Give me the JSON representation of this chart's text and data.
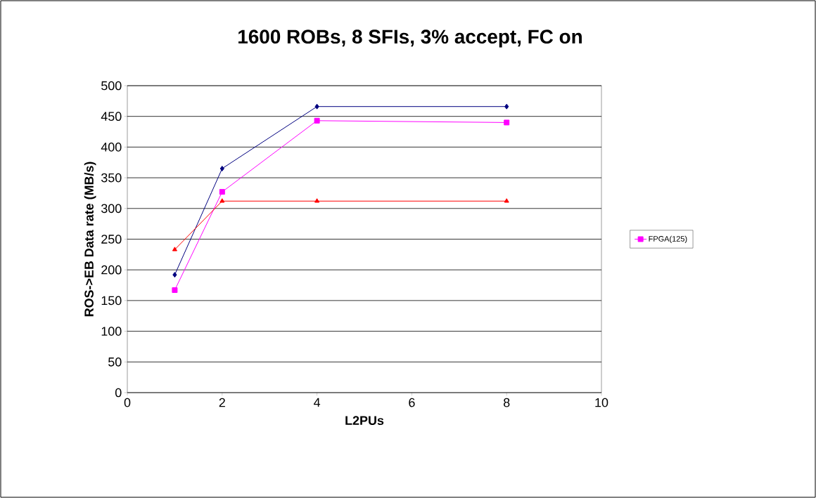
{
  "chart_data": {
    "type": "line",
    "title": "1600 ROBs, 8 SFIs, 3% accept, FC on",
    "xlabel": "L2PUs",
    "ylabel": "ROS->EB Data rate (MB/s)",
    "series": [
      {
        "color": "#000080",
        "marker": "diamond",
        "x": [
          1,
          2,
          4,
          8
        ],
        "values": [
          192,
          365,
          466,
          466
        ]
      },
      {
        "name": "FPGA(125)",
        "color": "#ff00ff",
        "marker": "square",
        "x": [
          1,
          2,
          4,
          8
        ],
        "values": [
          167,
          327,
          443,
          440
        ]
      },
      {
        "color": "#ff0000",
        "marker": "triangle",
        "x": [
          1,
          2,
          4,
          8
        ],
        "values": [
          233,
          312,
          312,
          312
        ]
      }
    ],
    "xlim": [
      0,
      10
    ],
    "xticks": [
      0,
      2,
      4,
      6,
      8,
      10
    ],
    "ylim": [
      0,
      500
    ],
    "yticks": [
      0,
      50,
      100,
      150,
      200,
      250,
      300,
      350,
      400,
      450,
      500
    ],
    "grid": "y",
    "legend": "right",
    "line_style": "solid"
  }
}
